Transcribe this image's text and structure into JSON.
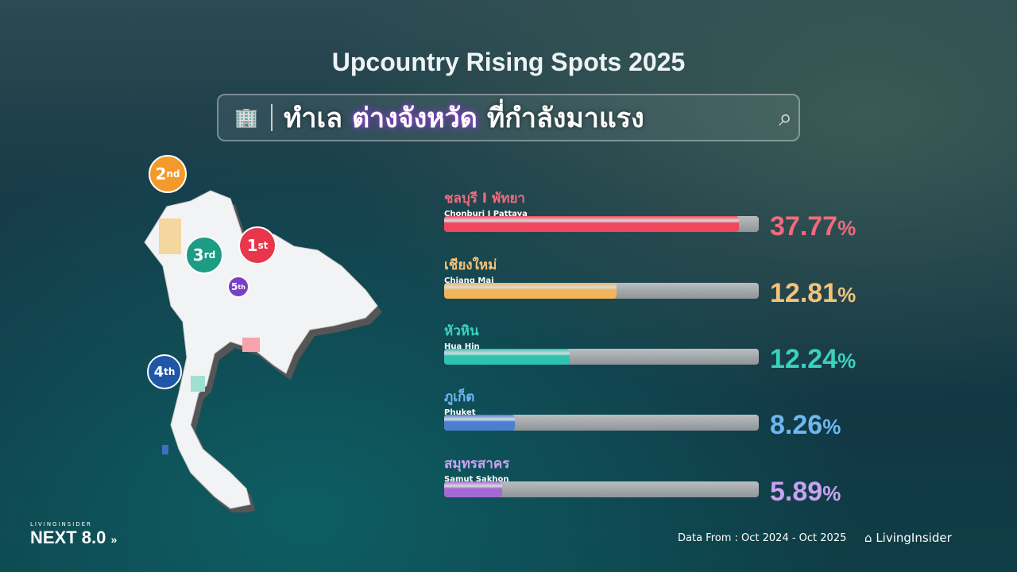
{
  "title": "Upcountry Rising Spots 2025",
  "subtitle": {
    "part1": "ทำเล",
    "highlight": "ต่างจังหวัด",
    "part2": "ที่กำลังมาแรง",
    "icons": [
      "building-icon",
      "search-icon"
    ]
  },
  "chart_data": {
    "type": "bar",
    "orientation": "horizontal",
    "title": "Upcountry Rising Spots 2025",
    "categories": [
      "ชลบุรี I พัทยา",
      "เชียงใหม่",
      "หัวหิน",
      "ภูเก็ต",
      "สมุทรสาคร"
    ],
    "categories_en": [
      "Chonburi I Pattaya",
      "Chiang Mai",
      "Hua Hin",
      "Phuket",
      "Samut Sakhon"
    ],
    "values": [
      37.77,
      12.81,
      12.24,
      8.26,
      5.89
    ],
    "value_labels": [
      "37.77",
      "12.81",
      "12.24",
      "8.26",
      "5.89"
    ],
    "unit": "%",
    "fill_fraction": [
      0.937,
      0.548,
      0.399,
      0.225,
      0.184
    ],
    "colors": [
      "#f0475e",
      "#f1b45a",
      "#2fc2b0",
      "#4a7fd0",
      "#a36ad6"
    ],
    "label_colors": [
      "#f06b7d",
      "#f4c27a",
      "#3bd1be",
      "#6cb8ef",
      "#c9a2f0"
    ]
  },
  "map": {
    "ranks": [
      {
        "num": "1",
        "suffix": "st",
        "color": "#e8364a"
      },
      {
        "num": "2",
        "suffix": "nd",
        "color": "#f39a2b"
      },
      {
        "num": "3",
        "suffix": "rd",
        "color": "#1c9b85"
      },
      {
        "num": "4",
        "suffix": "th",
        "color": "#1f56a8"
      },
      {
        "num": "5",
        "suffix": "th",
        "color": "#7b3fc6"
      }
    ]
  },
  "footer": {
    "source": "Data From : Oct 2024 - Oct  2025",
    "brand": "LivingInsider",
    "event_small": "LIVINGINSIDER",
    "event": "NEXT 8.0"
  }
}
